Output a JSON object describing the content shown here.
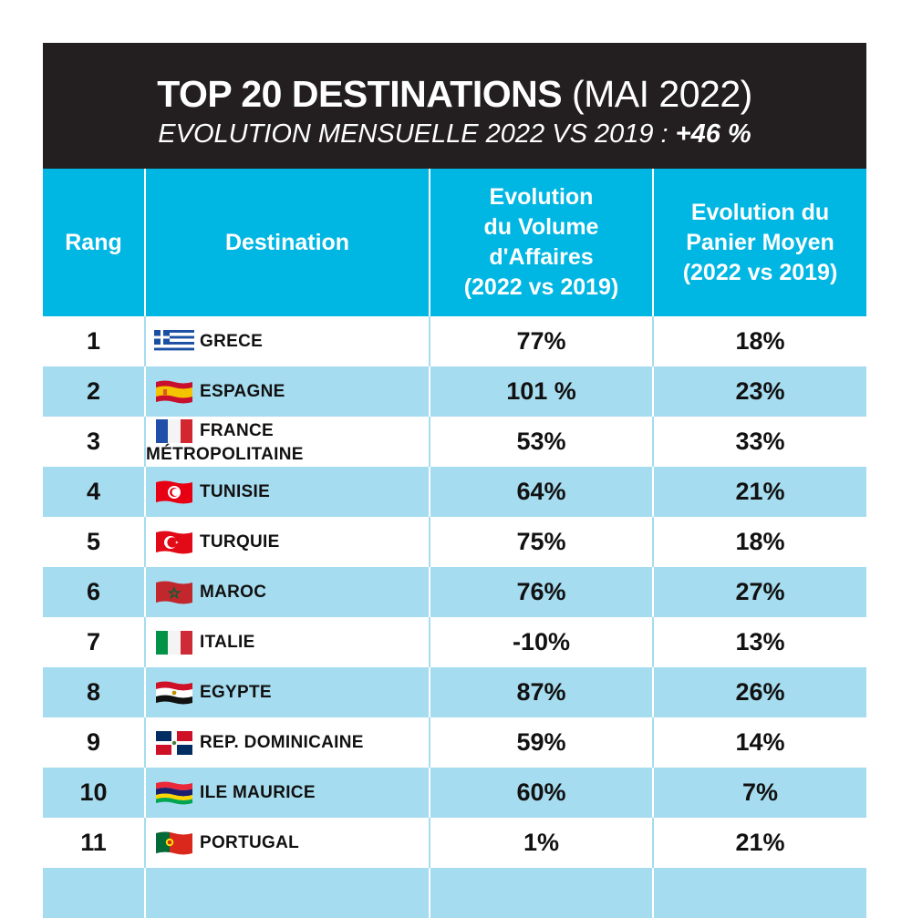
{
  "chart_data": {
    "type": "table",
    "title": "TOP 20 DESTINATIONS",
    "title_suffix": "(MAI 2022)",
    "subtitle": "EVOLUTION MENSUELLE 2022 VS 2019 :",
    "subtitle_value": "+46 %",
    "columns": {
      "rank": "Rang",
      "destination": "Destination",
      "volume": [
        "Evolution",
        "du Volume",
        "d'Affaires",
        "(2022 vs 2019)"
      ],
      "basket": [
        "Evolution du",
        "Panier Moyen",
        "(2022 vs 2019)"
      ]
    },
    "rows": [
      {
        "rank": "1",
        "destination": "GRECE",
        "flag": "greece-flag-icon",
        "volume": "77%",
        "basket": "18%"
      },
      {
        "rank": "2",
        "destination": "ESPAGNE",
        "flag": "spain-flag-icon",
        "volume": "101 %",
        "basket": "23%"
      },
      {
        "rank": "3",
        "destination": "FRANCE MÉTROPOLITAINE",
        "flag": "france-flag-icon",
        "volume": "53%",
        "basket": "33%"
      },
      {
        "rank": "4",
        "destination": "TUNISIE",
        "flag": "tunisia-flag-icon",
        "volume": "64%",
        "basket": "21%"
      },
      {
        "rank": "5",
        "destination": "TURQUIE",
        "flag": "turkey-flag-icon",
        "volume": "75%",
        "basket": "18%"
      },
      {
        "rank": "6",
        "destination": "MAROC",
        "flag": "morocco-flag-icon",
        "volume": "76%",
        "basket": "27%"
      },
      {
        "rank": "7",
        "destination": "ITALIE",
        "flag": "italy-flag-icon",
        "volume": "-10%",
        "basket": "13%"
      },
      {
        "rank": "8",
        "destination": "EGYPTE",
        "flag": "egypt-flag-icon",
        "volume": "87%",
        "basket": "26%"
      },
      {
        "rank": "9",
        "destination": "REP. DOMINICAINE",
        "flag": "dominican-republic-flag-icon",
        "volume": "59%",
        "basket": "14%"
      },
      {
        "rank": "10",
        "destination": "ILE MAURICE",
        "flag": "mauritius-flag-icon",
        "volume": "60%",
        "basket": "7%"
      },
      {
        "rank": "11",
        "destination": "PORTUGAL",
        "flag": "portugal-flag-icon",
        "volume": "1%",
        "basket": "21%"
      }
    ]
  },
  "colors": {
    "banner": "#231f20",
    "header": "#00b6e2",
    "stripe": "#a6dcef"
  }
}
